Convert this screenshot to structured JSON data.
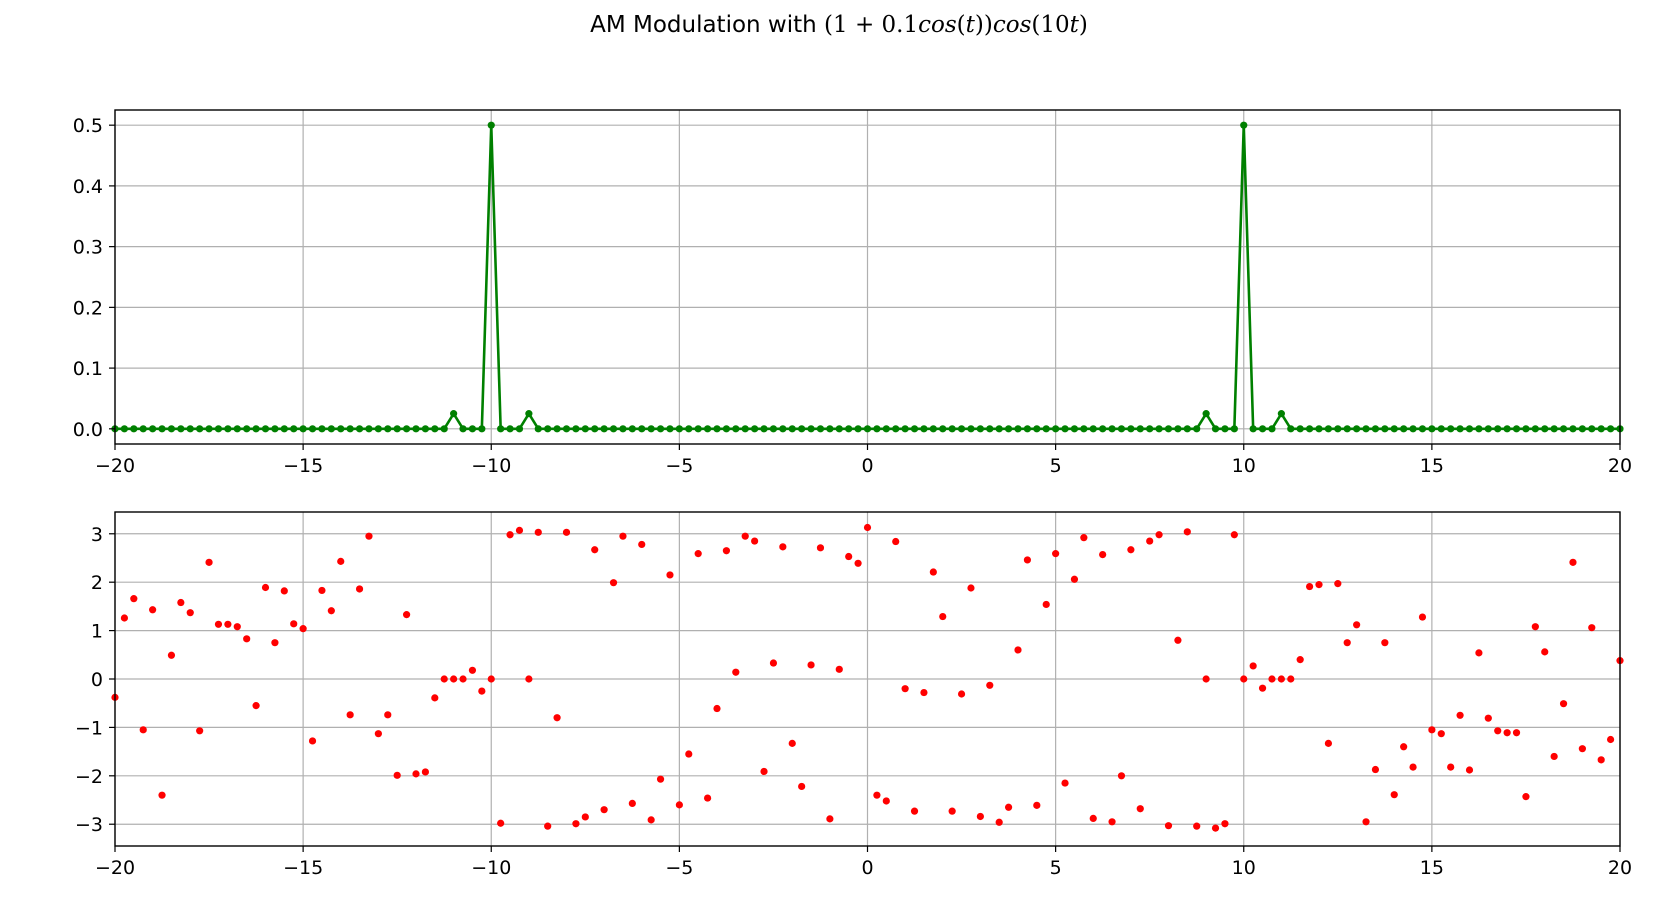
{
  "title_prefix": "AM Modulation with ",
  "title_math": [
    "(1 + 0.1",
    "cos",
    "(",
    "t",
    "))",
    "cos",
    "(10",
    "t",
    ")"
  ],
  "chart_data": [
    {
      "type": "line",
      "name": "magnitude",
      "color": "#008000",
      "marker": "dot",
      "xlim": [
        -20,
        20
      ],
      "ylim": [
        -0.025,
        0.525
      ],
      "grid": true,
      "xticks": [
        -20,
        -15,
        -10,
        -5,
        0,
        5,
        10,
        15,
        20
      ],
      "xtick_labels": [
        "−20",
        "−15",
        "−10",
        "−5",
        "0",
        "5",
        "10",
        "15",
        "20"
      ],
      "yticks": [
        0.0,
        0.1,
        0.2,
        0.3,
        0.4,
        0.5
      ],
      "ytick_labels": [
        "0.0",
        "0.1",
        "0.2",
        "0.3",
        "0.4",
        "0.5"
      ],
      "x_start": -20.0,
      "x_step": 0.25,
      "nonzero_points": [
        {
          "x": -11.0,
          "y": 0.025
        },
        {
          "x": -10.0,
          "y": 0.5
        },
        {
          "x": -9.0,
          "y": 0.025
        },
        {
          "x": 9.0,
          "y": 0.025
        },
        {
          "x": 10.0,
          "y": 0.5
        },
        {
          "x": 11.0,
          "y": 0.025
        }
      ]
    },
    {
      "type": "scatter",
      "name": "phase",
      "color": "#ff0000",
      "xlim": [
        -20,
        20
      ],
      "ylim": [
        -3.45,
        3.45
      ],
      "grid": true,
      "xticks": [
        -20,
        -15,
        -10,
        -5,
        0,
        5,
        10,
        15,
        20
      ],
      "xtick_labels": [
        "−20",
        "−15",
        "−10",
        "−5",
        "0",
        "5",
        "10",
        "15",
        "20"
      ],
      "yticks": [
        -3,
        -2,
        -1,
        0,
        1,
        2,
        3
      ],
      "ytick_labels": [
        "−3",
        "−2",
        "−1",
        "0",
        "1",
        "2",
        "3"
      ],
      "x_start": -20.0,
      "x_step": 0.25,
      "y": [
        -0.38,
        1.26,
        1.66,
        -1.05,
        1.43,
        -2.4,
        0.49,
        1.58,
        1.37,
        -1.07,
        2.41,
        1.13,
        1.13,
        1.08,
        0.83,
        -0.55,
        1.89,
        0.75,
        1.82,
        1.14,
        1.04,
        -1.28,
        1.83,
        1.41,
        2.43,
        -0.74,
        1.86,
        2.95,
        -1.13,
        -0.74,
        -1.99,
        1.33,
        -1.96,
        -1.92,
        -0.39,
        0.0,
        0.0,
        0.0,
        0.18,
        -0.25,
        0.0,
        -2.98,
        2.98,
        3.07,
        0.0,
        3.03,
        -3.04,
        -0.8,
        3.03,
        -2.99,
        -2.85,
        2.67,
        -2.7,
        1.99,
        2.95,
        -2.57,
        2.78,
        -2.91,
        -2.07,
        2.15,
        -2.6,
        -1.55,
        2.59,
        -2.46,
        -0.61,
        2.65,
        0.14,
        2.95,
        2.85,
        -1.91,
        0.33,
        2.73,
        -1.33,
        -2.22,
        0.29,
        2.71,
        -2.89,
        0.2,
        2.53,
        2.39,
        3.13,
        -2.4,
        -2.52,
        2.84,
        -0.2,
        -2.73,
        -0.28,
        2.21,
        1.29,
        -2.73,
        -0.31,
        1.88,
        -2.84,
        -0.13,
        -2.96,
        -2.65,
        0.6,
        2.46,
        -2.61,
        1.54,
        2.59,
        -2.15,
        2.06,
        2.92,
        -2.88,
        2.57,
        -2.95,
        -2.0,
        2.67,
        -2.68,
        2.85,
        2.98,
        -3.03,
        0.8,
        3.04,
        -3.04,
        0.0,
        -3.08,
        -2.99,
        2.98,
        0.0,
        0.27,
        -0.19,
        0.0,
        0.0,
        0.0,
        0.4,
        1.91,
        1.95,
        -1.33,
        1.97,
        0.75,
        1.12,
        -2.95,
        -1.87,
        0.75,
        -2.39,
        -1.4,
        -1.82,
        1.28,
        -1.05,
        -1.13,
        -1.82,
        -0.75,
        -1.88,
        0.54,
        -0.81,
        -1.07,
        -1.11,
        -1.11,
        -2.43,
        1.08,
        0.56,
        -1.6,
        -0.51,
        2.41,
        -1.44,
        1.06,
        -1.67,
        -1.25,
        0.38
      ]
    }
  ]
}
